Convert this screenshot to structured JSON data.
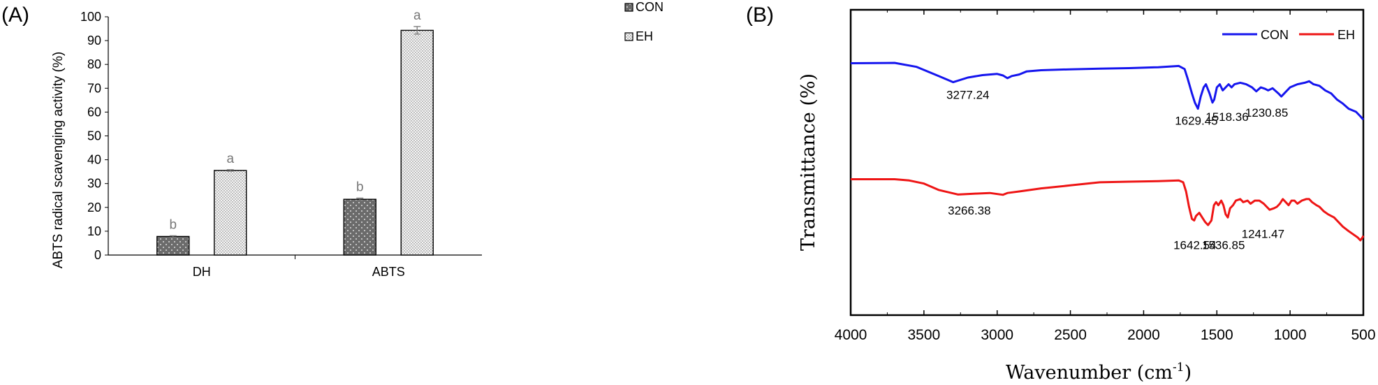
{
  "chart_data": [
    {
      "panel": "(A)",
      "type": "bar",
      "categories": [
        "DH",
        "ABTS"
      ],
      "ylabel": "ABTS radical scavenging activity (%)",
      "ylim": [
        0,
        100
      ],
      "yticks": [
        0,
        10,
        20,
        30,
        40,
        50,
        60,
        70,
        80,
        90,
        100
      ],
      "series": [
        {
          "name": "CON",
          "values": [
            7.8,
            23.4
          ],
          "errors": [
            0.3,
            0.5
          ],
          "letters": [
            "b",
            "b"
          ]
        },
        {
          "name": "EH",
          "values": [
            35.5,
            94.3
          ],
          "errors": [
            0.3,
            1.6
          ],
          "letters": [
            "a",
            "a"
          ]
        }
      ],
      "legend": "top-right, outside plot",
      "grid": false
    },
    {
      "panel": "(B)",
      "type": "line",
      "xlabel": "Wavenumber (cm",
      "xlabel_sup": "-1",
      "xlabel_close": ")",
      "ylabel": "Transmittance (%)",
      "xlim": [
        4000,
        500
      ],
      "xticks": [
        4000,
        3500,
        3000,
        2500,
        2000,
        1500,
        1000,
        500
      ],
      "legend": "top-right",
      "grid": false,
      "series": [
        {
          "name": "CON",
          "color": "#1515ee",
          "points": [
            [
              4000,
              82.5
            ],
            [
              3700,
              82.6
            ],
            [
              3550,
              81.3
            ],
            [
              3400,
              78.3
            ],
            [
              3300,
              76.3
            ],
            [
              3200,
              77.8
            ],
            [
              3100,
              78.6
            ],
            [
              3000,
              79.0
            ],
            [
              2960,
              78.5
            ],
            [
              2930,
              77.6
            ],
            [
              2900,
              78.3
            ],
            [
              2850,
              78.8
            ],
            [
              2800,
              79.8
            ],
            [
              2700,
              80.2
            ],
            [
              2500,
              80.5
            ],
            [
              2300,
              80.7
            ],
            [
              2100,
              80.9
            ],
            [
              1900,
              81.2
            ],
            [
              1760,
              81.6
            ],
            [
              1720,
              80.6
            ],
            [
              1700,
              77.6
            ],
            [
              1670,
              72.6
            ],
            [
              1650,
              69.6
            ],
            [
              1629,
              67.6
            ],
            [
              1610,
              71.6
            ],
            [
              1590,
              74.6
            ],
            [
              1575,
              75.6
            ],
            [
              1550,
              72.6
            ],
            [
              1530,
              69.6
            ],
            [
              1518,
              70.6
            ],
            [
              1500,
              74.6
            ],
            [
              1480,
              75.6
            ],
            [
              1460,
              73.6
            ],
            [
              1440,
              74.6
            ],
            [
              1420,
              75.6
            ],
            [
              1400,
              74.6
            ],
            [
              1380,
              75.6
            ],
            [
              1340,
              76.1
            ],
            [
              1300,
              75.6
            ],
            [
              1260,
              74.6
            ],
            [
              1231,
              73.3
            ],
            [
              1200,
              74.6
            ],
            [
              1170,
              74.1
            ],
            [
              1150,
              73.6
            ],
            [
              1120,
              74.3
            ],
            [
              1080,
              72.6
            ],
            [
              1060,
              71.6
            ],
            [
              1040,
              72.6
            ],
            [
              1000,
              74.6
            ],
            [
              950,
              75.6
            ],
            [
              900,
              76.1
            ],
            [
              870,
              76.6
            ],
            [
              840,
              75.6
            ],
            [
              800,
              75.1
            ],
            [
              760,
              73.6
            ],
            [
              720,
              72.6
            ],
            [
              680,
              70.6
            ],
            [
              640,
              69.3
            ],
            [
              600,
              67.6
            ],
            [
              550,
              66.6
            ],
            [
              520,
              65.1
            ],
            [
              500,
              64.0
            ]
          ]
        },
        {
          "name": "EH",
          "color": "#ee1515",
          "points": [
            [
              4000,
              44.5
            ],
            [
              3700,
              44.5
            ],
            [
              3600,
              44.1
            ],
            [
              3500,
              43.1
            ],
            [
              3400,
              41.0
            ],
            [
              3266,
              39.5
            ],
            [
              3150,
              39.8
            ],
            [
              3050,
              40.0
            ],
            [
              2960,
              39.4
            ],
            [
              2930,
              40.0
            ],
            [
              2850,
              40.5
            ],
            [
              2700,
              41.5
            ],
            [
              2500,
              42.5
            ],
            [
              2300,
              43.5
            ],
            [
              2100,
              43.7
            ],
            [
              1900,
              43.9
            ],
            [
              1760,
              44.1
            ],
            [
              1730,
              43.5
            ],
            [
              1710,
              40.5
            ],
            [
              1690,
              35.5
            ],
            [
              1670,
              31.5
            ],
            [
              1655,
              31.0
            ],
            [
              1642,
              32.5
            ],
            [
              1620,
              33.5
            ],
            [
              1600,
              32.0
            ],
            [
              1580,
              30.5
            ],
            [
              1560,
              29.5
            ],
            [
              1537,
              31.0
            ],
            [
              1520,
              36.0
            ],
            [
              1505,
              37.0
            ],
            [
              1490,
              36.0
            ],
            [
              1470,
              37.5
            ],
            [
              1455,
              36.0
            ],
            [
              1440,
              33.0
            ],
            [
              1425,
              32.0
            ],
            [
              1410,
              35.0
            ],
            [
              1390,
              36.0
            ],
            [
              1370,
              37.5
            ],
            [
              1340,
              38.0
            ],
            [
              1320,
              37.0
            ],
            [
              1290,
              37.5
            ],
            [
              1270,
              36.5
            ],
            [
              1241,
              37.5
            ],
            [
              1210,
              37.5
            ],
            [
              1180,
              36.5
            ],
            [
              1160,
              35.5
            ],
            [
              1140,
              34.5
            ],
            [
              1110,
              35.0
            ],
            [
              1090,
              35.5
            ],
            [
              1070,
              36.5
            ],
            [
              1050,
              38.0
            ],
            [
              1030,
              37.0
            ],
            [
              1010,
              36.0
            ],
            [
              990,
              37.5
            ],
            [
              970,
              37.5
            ],
            [
              950,
              36.5
            ],
            [
              920,
              37.5
            ],
            [
              890,
              38.0
            ],
            [
              870,
              38.0
            ],
            [
              850,
              37.0
            ],
            [
              820,
              36.0
            ],
            [
              800,
              35.5
            ],
            [
              770,
              34.0
            ],
            [
              740,
              33.0
            ],
            [
              700,
              32.0
            ],
            [
              670,
              30.5
            ],
            [
              640,
              29.0
            ],
            [
              600,
              27.5
            ],
            [
              570,
              26.5
            ],
            [
              540,
              25.5
            ],
            [
              520,
              24.5
            ],
            [
              505,
              25.5
            ],
            [
              500,
              26.0
            ]
          ]
        }
      ],
      "annotations": [
        {
          "text": "3277.24",
          "x": 3200,
          "y": 70.8
        },
        {
          "text": "1629.45",
          "x": 1640,
          "y": 62.3
        },
        {
          "text": "1518.36",
          "x": 1430,
          "y": 63.6
        },
        {
          "text": "1230.85",
          "x": 1160,
          "y": 65.0
        },
        {
          "text": "3266.38",
          "x": 3190,
          "y": 32.9
        },
        {
          "text": "1642.54",
          "x": 1650,
          "y": 21.6
        },
        {
          "text": "1536.85",
          "x": 1455,
          "y": 21.6
        },
        {
          "text": "1241.47",
          "x": 1185,
          "y": 25.3
        }
      ]
    }
  ]
}
